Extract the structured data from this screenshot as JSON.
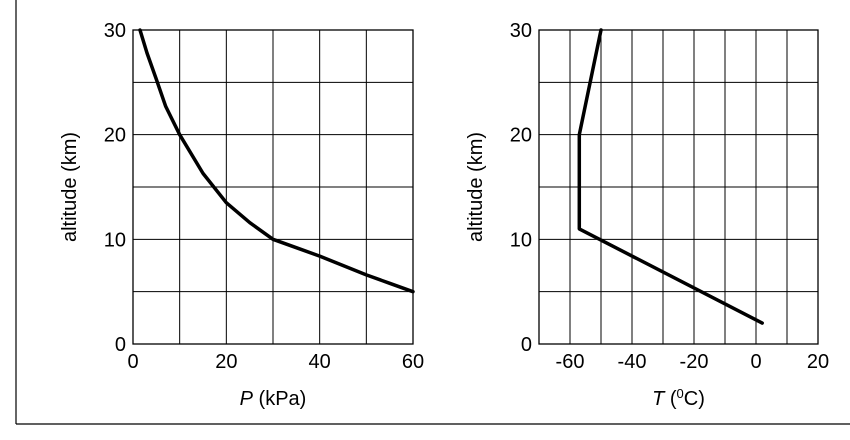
{
  "chart_data": [
    {
      "type": "line",
      "title": "",
      "xlabel_var": "P",
      "xlabel_unit": " (kPa)",
      "ylabel": "altitude (km)",
      "xlim": [
        0,
        60
      ],
      "ylim": [
        0,
        30
      ],
      "x_grid_step": 10,
      "y_grid_step": 5,
      "x_ticks": [
        0,
        20,
        40,
        60
      ],
      "y_ticks": [
        0,
        10,
        20,
        30
      ],
      "grid": true,
      "series": [
        {
          "x": [
            60,
            55,
            50,
            45,
            40,
            35,
            30,
            25,
            20,
            15,
            10,
            7,
            5,
            3,
            1.5
          ],
          "y": [
            5,
            5.8,
            6.6,
            7.5,
            8.4,
            9.2,
            10,
            11.6,
            13.5,
            16.3,
            20,
            22.7,
            25.3,
            27.8,
            30
          ]
        }
      ]
    },
    {
      "type": "line",
      "title": "",
      "xlabel_var": "T",
      "xlabel_unit_open": " (",
      "xlabel_sup": "0",
      "xlabel_unit_close": "C)",
      "ylabel": "altitude (km)",
      "xlim": [
        -70,
        20
      ],
      "ylim": [
        0,
        30
      ],
      "x_grid_step": 10,
      "y_grid_step": 5,
      "x_ticks": [
        -60,
        -40,
        -20,
        0,
        20
      ],
      "y_ticks": [
        0,
        10,
        20,
        30
      ],
      "grid": true,
      "series": [
        {
          "x": [
            2,
            -57,
            -57,
            -50
          ],
          "y": [
            2,
            11,
            20,
            30
          ]
        }
      ]
    }
  ]
}
